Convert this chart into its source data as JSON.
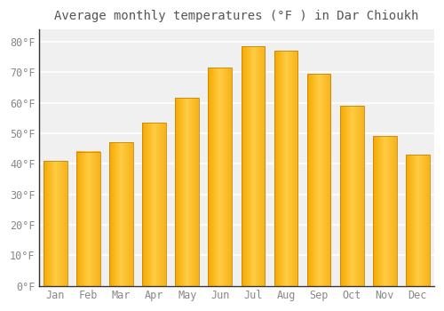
{
  "title": "Average monthly temperatures (°F ) in Dar Chioukh",
  "months": [
    "Jan",
    "Feb",
    "Mar",
    "Apr",
    "May",
    "Jun",
    "Jul",
    "Aug",
    "Sep",
    "Oct",
    "Nov",
    "Dec"
  ],
  "values": [
    41,
    44,
    47,
    53.5,
    61.5,
    71.5,
    78.5,
    77,
    69.5,
    59,
    49,
    43
  ],
  "bar_color_left": "#F5A800",
  "bar_color_center": "#FFCC44",
  "bar_color_right": "#F5A800",
  "background_color": "#ffffff",
  "plot_bg_color": "#f0f0f0",
  "grid_color": "#ffffff",
  "spine_color": "#333333",
  "text_color": "#888888",
  "ylim": [
    0,
    84
  ],
  "yticks": [
    0,
    10,
    20,
    30,
    40,
    50,
    60,
    70,
    80
  ],
  "ytick_labels": [
    "0°F",
    "10°F",
    "20°F",
    "30°F",
    "40°F",
    "50°F",
    "60°F",
    "70°F",
    "80°F"
  ],
  "title_fontsize": 10,
  "tick_fontsize": 8.5,
  "bar_width": 0.72
}
